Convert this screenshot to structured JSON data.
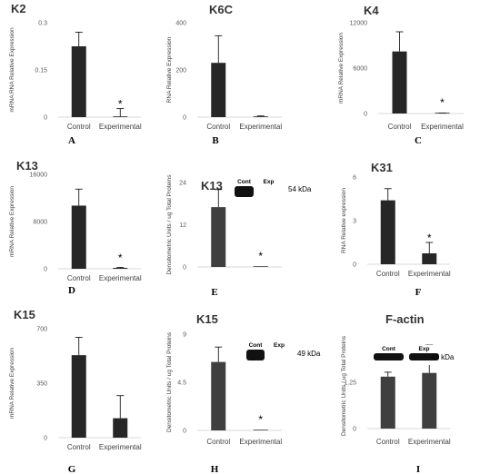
{
  "chart_data": [
    {
      "type": "bar",
      "panel_letter": "A",
      "title": "K2",
      "ylabel": "mRNA RNA Relative Expression",
      "categories": [
        "Control",
        "Experimental"
      ],
      "values": [
        0.225,
        0.002
      ],
      "errors": [
        0.045,
        0.025
      ],
      "yticks": [
        "0",
        "0.15",
        "0.3"
      ],
      "ytick_values": [
        0,
        0.15,
        0.3
      ],
      "ylim": [
        0,
        0.3
      ],
      "significance": [
        "",
        "*"
      ],
      "bar_color": "#262626"
    },
    {
      "type": "bar",
      "panel_letter": "B",
      "title": "K6C",
      "ylabel": "RNA Relative Expression",
      "categories": [
        "Control",
        "Experimental"
      ],
      "values": [
        230,
        3
      ],
      "errors": [
        115,
        2
      ],
      "yticks": [
        "0",
        "200",
        "400"
      ],
      "ytick_values": [
        0,
        200,
        400
      ],
      "ylim": [
        0,
        400
      ],
      "significance": [
        "",
        ""
      ],
      "bar_color": "#262626"
    },
    {
      "type": "bar",
      "panel_letter": "C",
      "title": "K4",
      "ylabel": "mRNA Relative Expression",
      "categories": [
        "Control",
        "Experimental"
      ],
      "values": [
        8200,
        30
      ],
      "errors": [
        2600,
        20
      ],
      "yticks": [
        "0",
        "6000",
        "12000"
      ],
      "ytick_values": [
        0,
        6000,
        12000
      ],
      "ylim": [
        0,
        12000
      ],
      "significance": [
        "",
        "*"
      ],
      "bar_color": "#262626"
    },
    {
      "type": "bar",
      "panel_letter": "D",
      "title": "K13",
      "ylabel": "mRNA Relative Expression",
      "categories": [
        "Control",
        "Experimental"
      ],
      "values": [
        10700,
        150
      ],
      "errors": [
        2800,
        100
      ],
      "yticks": [
        "0",
        "8000",
        "16000"
      ],
      "ytick_values": [
        0,
        8000,
        16000
      ],
      "ylim": [
        0,
        16000
      ],
      "significance": [
        "",
        "*"
      ],
      "bar_color": "#262626"
    },
    {
      "type": "bar",
      "panel_letter": "E",
      "title": "K13",
      "ylabel": "Densitometric Units / ug Total Proteins",
      "categories": [
        "",
        ""
      ],
      "values": [
        17,
        0.1
      ],
      "errors": [
        5,
        0
      ],
      "yticks": [
        "0",
        "12",
        "24"
      ],
      "ytick_values": [
        0,
        12,
        24
      ],
      "ylim": [
        0,
        24
      ],
      "significance": [
        "",
        "*"
      ],
      "bar_color": "#3f3f3f",
      "blot": {
        "lanes": [
          "Cont",
          "Exp"
        ],
        "band_lanes": [
          true,
          false
        ],
        "kda": "54 kDa"
      }
    },
    {
      "type": "bar",
      "panel_letter": "F",
      "title": "K31",
      "ylabel": "RNA Relative expression",
      "categories": [
        "Control",
        "Experimental"
      ],
      "values": [
        4.4,
        0.75
      ],
      "errors": [
        0.8,
        0.75
      ],
      "yticks": [
        "0",
        "3",
        "6"
      ],
      "ytick_values": [
        0,
        3,
        6
      ],
      "ylim": [
        0,
        6
      ],
      "significance": [
        "",
        "*"
      ],
      "bar_color": "#262626"
    },
    {
      "type": "bar",
      "panel_letter": "G",
      "title": "K15",
      "ylabel": "mRNA Relative Expression",
      "categories": [
        "Control",
        "Experimental"
      ],
      "values": [
        530,
        125
      ],
      "errors": [
        115,
        145
      ],
      "yticks": [
        "0",
        "350",
        "700"
      ],
      "ytick_values": [
        0,
        350,
        700
      ],
      "ylim": [
        0,
        700
      ],
      "significance": [
        "",
        ""
      ],
      "bar_color": "#262626"
    },
    {
      "type": "bar",
      "panel_letter": "H",
      "title": "K15",
      "ylabel": "Densitometric Units / ug Total Proteins",
      "categories": [
        "Control",
        "Experimental"
      ],
      "values": [
        6.4,
        0.05
      ],
      "errors": [
        1.4,
        0
      ],
      "yticks": [
        "0",
        "4.5",
        "9"
      ],
      "ytick_values": [
        0,
        4.5,
        9
      ],
      "ylim": [
        0,
        9
      ],
      "significance": [
        "",
        "*"
      ],
      "bar_color": "#3f3f3f",
      "blot": {
        "lanes": [
          "Cont",
          "Exp"
        ],
        "band_lanes": [
          true,
          false
        ],
        "kda": "49 kDa"
      }
    },
    {
      "type": "bar",
      "panel_letter": "I",
      "title": "F-actin",
      "ylabel": "Densitometric Units / ug Total Proteins",
      "categories": [
        "Control",
        "Experimental"
      ],
      "values": [
        1.4,
        1.5
      ],
      "errors": [
        0.12,
        0.75
      ],
      "yticks": [
        "0",
        "1.25"
      ],
      "ytick_values": [
        0,
        1.25
      ],
      "ylim": [
        0,
        2.3
      ],
      "significance": [
        "",
        ""
      ],
      "bar_color": "#3f3f3f",
      "blot": {
        "lanes": [
          "Cont",
          "Exp"
        ],
        "band_lanes": [
          true,
          true
        ],
        "kda": "42 kDa"
      }
    }
  ]
}
